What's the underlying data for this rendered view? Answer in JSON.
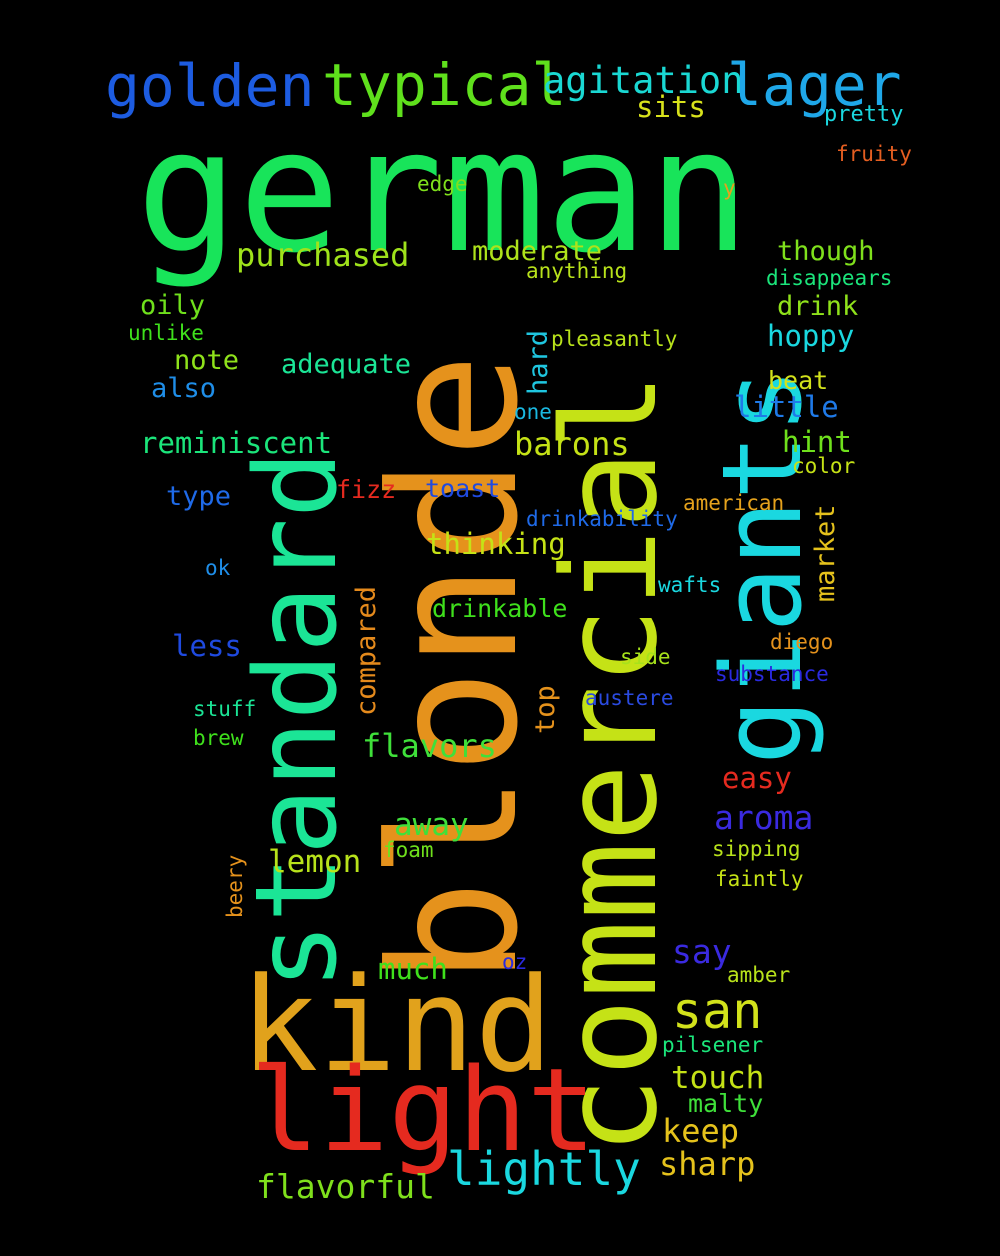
{
  "words": [
    {
      "text": "german",
      "color": "#18e45a"
    },
    {
      "text": "blonde",
      "color": "#e5921c"
    },
    {
      "text": "commercial",
      "color": "#c5e216"
    },
    {
      "text": "standard",
      "color": "#1be596"
    },
    {
      "text": "giants",
      "color": "#1ad8e0"
    },
    {
      "text": "kind",
      "color": "#e1a21c"
    },
    {
      "text": "light",
      "color": "#e52a1f"
    },
    {
      "text": "golden",
      "color": "#1d5ce1"
    },
    {
      "text": "typical",
      "color": "#5fe01c"
    },
    {
      "text": "agitation",
      "color": "#1ad8d3"
    },
    {
      "text": "lager",
      "color": "#1fa7e8"
    },
    {
      "text": "pretty",
      "color": "#1ad8e0"
    },
    {
      "text": "fruity",
      "color": "#e55e21"
    },
    {
      "text": "sits",
      "color": "#d8e21b"
    },
    {
      "text": "edge",
      "color": "#7fe01c"
    },
    {
      "text": "y",
      "color": "#e5a21c"
    },
    {
      "text": "purchased",
      "color": "#9fe21b"
    },
    {
      "text": "moderate",
      "color": "#aee21b"
    },
    {
      "text": "though",
      "color": "#7fe01c"
    },
    {
      "text": "anything",
      "color": "#b8e21b"
    },
    {
      "text": "disappears",
      "color": "#1be57b"
    },
    {
      "text": "oily",
      "color": "#6fe01c"
    },
    {
      "text": "drink",
      "color": "#8fe21b"
    },
    {
      "text": "unlike",
      "color": "#3fe01c"
    },
    {
      "text": "pleasantly",
      "color": "#b8e21b"
    },
    {
      "text": "hoppy",
      "color": "#1ad8e0"
    },
    {
      "text": "note",
      "color": "#8fe21b"
    },
    {
      "text": "adequate",
      "color": "#1be596"
    },
    {
      "text": "hard",
      "color": "#1fc6e0"
    },
    {
      "text": "beat",
      "color": "#d2e21b"
    },
    {
      "text": "also",
      "color": "#1f8ee8"
    },
    {
      "text": "one",
      "color": "#1ab8e0"
    },
    {
      "text": "little",
      "color": "#1f7ae8"
    },
    {
      "text": "reminiscent",
      "color": "#1be57b"
    },
    {
      "text": "barons",
      "color": "#c5e216"
    },
    {
      "text": "hint",
      "color": "#6fe01c"
    },
    {
      "text": "color",
      "color": "#c5e216"
    },
    {
      "text": "type",
      "color": "#1f6ae8"
    },
    {
      "text": "fizz",
      "color": "#e52a1f"
    },
    {
      "text": "toast",
      "color": "#1f4ae0"
    },
    {
      "text": "american",
      "color": "#e5a21c"
    },
    {
      "text": "market",
      "color": "#e5c21c"
    },
    {
      "text": "drinkability",
      "color": "#1f6ae8"
    },
    {
      "text": "thinking",
      "color": "#c5e216"
    },
    {
      "text": "ok",
      "color": "#1f8ee8"
    },
    {
      "text": "compared",
      "color": "#e58a1c"
    },
    {
      "text": "wafts",
      "color": "#1ad8e0"
    },
    {
      "text": "drinkable",
      "color": "#3fe01c"
    },
    {
      "text": "less",
      "color": "#1f4ae0"
    },
    {
      "text": "diego",
      "color": "#e5921c"
    },
    {
      "text": "side",
      "color": "#a6e21b"
    },
    {
      "text": "substance",
      "color": "#2a2ae0"
    },
    {
      "text": "top",
      "color": "#e5921c"
    },
    {
      "text": "austere",
      "color": "#2a4ae0"
    },
    {
      "text": "stuff",
      "color": "#1be596"
    },
    {
      "text": "brew",
      "color": "#3fe01c"
    },
    {
      "text": "flavors",
      "color": "#3fe03a"
    },
    {
      "text": "easy",
      "color": "#e52a1f"
    },
    {
      "text": "aroma",
      "color": "#3a2ae0"
    },
    {
      "text": "away",
      "color": "#3fe03a"
    },
    {
      "text": "lemon",
      "color": "#b8e21b"
    },
    {
      "text": "foam",
      "color": "#6fe01c"
    },
    {
      "text": "sipping",
      "color": "#b8e21b"
    },
    {
      "text": "faintly",
      "color": "#c5e216"
    },
    {
      "text": "beery",
      "color": "#e5921c"
    },
    {
      "text": "say",
      "color": "#3a2ae0"
    },
    {
      "text": "much",
      "color": "#3fe01c"
    },
    {
      "text": "oz",
      "color": "#2a2ae0"
    },
    {
      "text": "amber",
      "color": "#b8e21b"
    },
    {
      "text": "san",
      "color": "#d2e21b"
    },
    {
      "text": "pilsener",
      "color": "#1be57b"
    },
    {
      "text": "touch",
      "color": "#c5e216"
    },
    {
      "text": "malty",
      "color": "#3fe03a"
    },
    {
      "text": "keep",
      "color": "#e5c21c"
    },
    {
      "text": "lightly",
      "color": "#1ad8e0"
    },
    {
      "text": "sharp",
      "color": "#e5c21c"
    },
    {
      "text": "flavorful",
      "color": "#7fe01c"
    }
  ]
}
